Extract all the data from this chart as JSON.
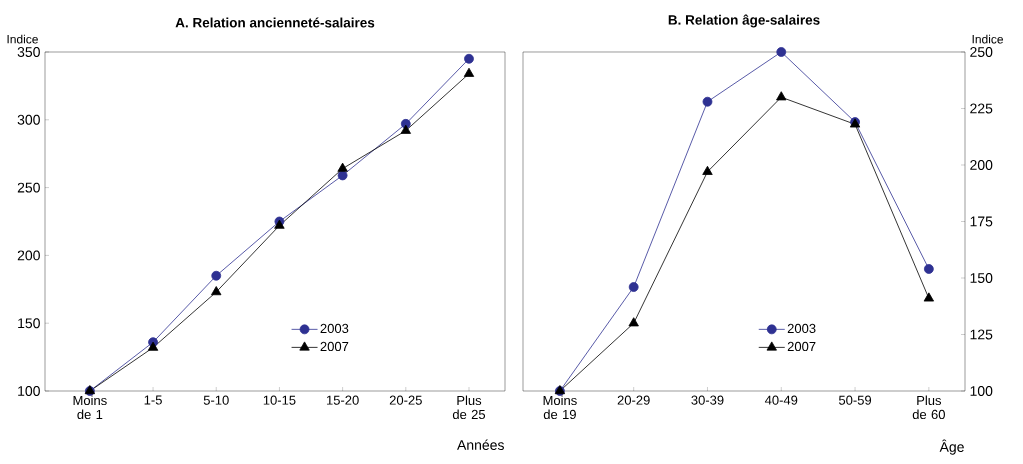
{
  "chart_data": [
    {
      "type": "line",
      "title": "A. Relation ancienneté-salaires",
      "ylabel": "Indice",
      "xlabel": "Années",
      "categories": [
        "Moins de 1",
        "1-5",
        "5-10",
        "10-15",
        "15-20",
        "20-25",
        "Plus de 25"
      ],
      "ylim": [
        100,
        350
      ],
      "yticks": [
        100,
        150,
        200,
        250,
        300,
        350
      ],
      "legend": "bottom",
      "line_style": "solid",
      "series": [
        {
          "name": "2003",
          "color": "#2e3192",
          "marker": "circle",
          "values": [
            100,
            136,
            185,
            225,
            259,
            297,
            345
          ]
        },
        {
          "name": "2007",
          "color": "#000000",
          "marker": "triangle",
          "values": [
            100,
            132,
            173,
            222,
            264,
            292,
            334
          ]
        }
      ]
    },
    {
      "type": "line",
      "title": "B. Relation âge-salaires",
      "y2label": "Indice",
      "xlabel": "Âge",
      "categories": [
        "Moins de 19",
        "20-29",
        "30-39",
        "40-49",
        "50-59",
        "Plus de 60"
      ],
      "y2lim": [
        100,
        250
      ],
      "y2ticks": [
        100,
        125,
        150,
        175,
        200,
        225,
        250
      ],
      "legend": "bottom",
      "line_style": "solid",
      "series": [
        {
          "name": "2003",
          "color": "#2e3192",
          "marker": "circle",
          "axis": "y2",
          "values": [
            100,
            146,
            228,
            250,
            219,
            154
          ]
        },
        {
          "name": "2007",
          "color": "#000000",
          "marker": "triangle",
          "axis": "y2",
          "values": [
            100,
            130,
            197,
            230,
            218,
            141
          ]
        }
      ]
    }
  ]
}
